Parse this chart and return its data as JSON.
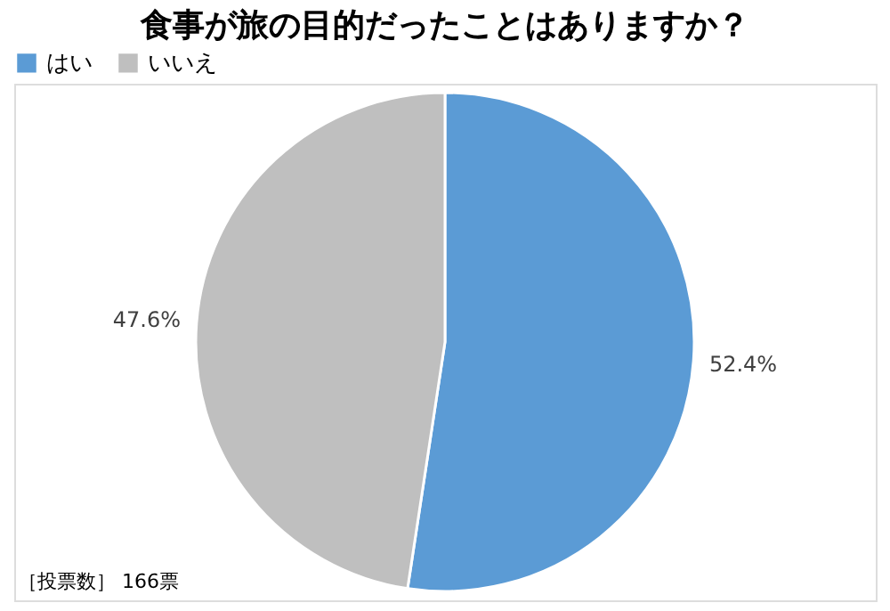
{
  "chart_data": {
    "type": "pie",
    "title": "食事が旅の目的だったことはありますか？",
    "categories": [
      "はい",
      "いいえ"
    ],
    "values": [
      52.4,
      47.6
    ],
    "colors": [
      "#5b9bd5",
      "#bfbfbf"
    ],
    "value_labels": [
      "52.4%",
      "47.6%"
    ],
    "legend": "top",
    "annotations": [
      "［投票数］ 166票"
    ]
  }
}
